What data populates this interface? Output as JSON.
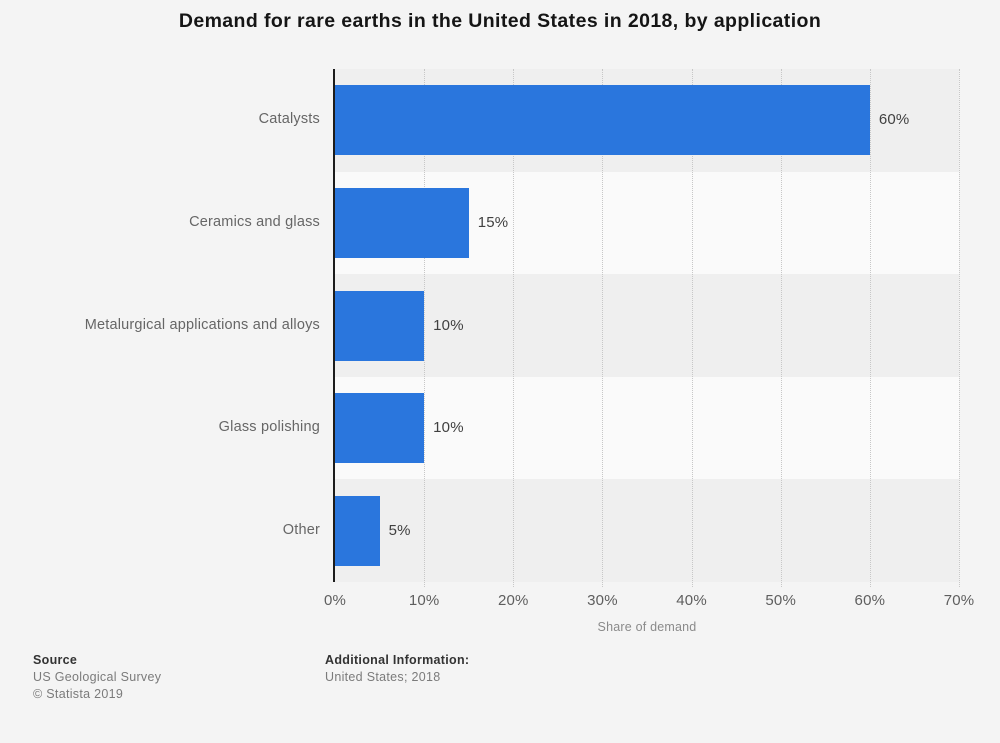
{
  "title": "Demand for rare earths in the United States in 2018, by application",
  "chart_data": {
    "type": "bar",
    "orientation": "horizontal",
    "title": "Demand for rare earths in the United States in 2018, by application",
    "categories": [
      "Catalysts",
      "Ceramics and glass",
      "Metalurgical applications and alloys",
      "Glass polishing",
      "Other"
    ],
    "values": [
      60,
      15,
      10,
      10,
      5
    ],
    "value_labels": [
      "60%",
      "15%",
      "10%",
      "10%",
      "5%"
    ],
    "xlabel": "Share of demand",
    "xlim": [
      0,
      70
    ],
    "xtick_labels": [
      "0%",
      "10%",
      "20%",
      "30%",
      "40%",
      "50%",
      "60%",
      "70%"
    ],
    "grid": "vertical-dotted",
    "legend": "none",
    "bar_color": "#2a76dd",
    "row_stripe_colors": [
      "#efefef",
      "#fafafa"
    ],
    "axis_color": "#1c1c1c"
  },
  "footer": {
    "source_label": "Source",
    "source_value": "US Geological Survey",
    "copyright": "© Statista 2019",
    "additional_label": "Additional Information:",
    "additional_value": "United States; 2018"
  }
}
